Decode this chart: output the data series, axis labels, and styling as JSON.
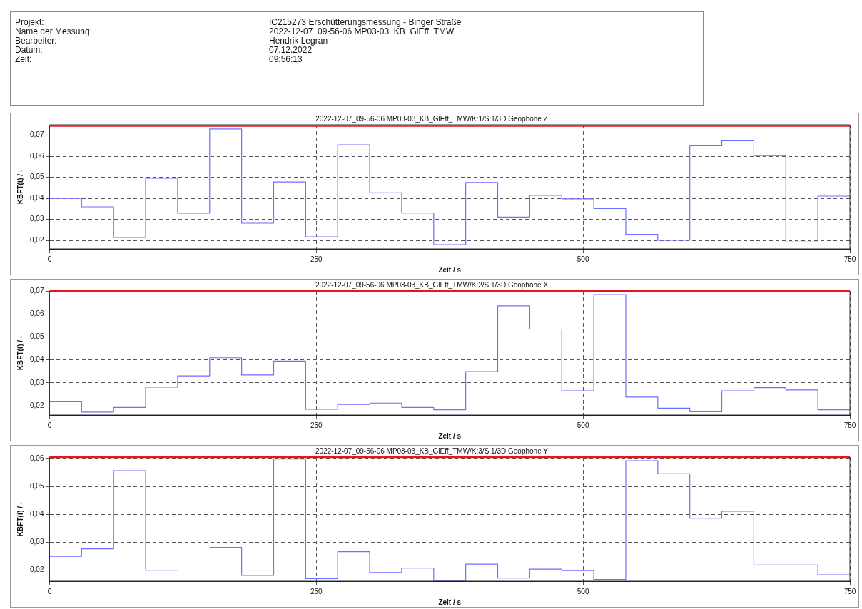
{
  "chart_data": [
    {
      "type": "other",
      "annotations": [
        "Projekt:",
        "IC215273 Erschütterungsmessung - Binger Straße",
        "Name der Messung:",
        "2022-12-07_09-56-06 MP03-03_KB_GlEff_TMW",
        "Bearbeiter:",
        "Hendrik Legran",
        "Datum:",
        "07.12.2022",
        "Zeit:",
        "09:56:13"
      ]
    },
    {
      "type": "step",
      "title": "2022-12-07_09-56-06 MP03-03_KB_GlEff_TMW/K:1/S:1/3D Geophone Z",
      "xlabel": "Zeit / s",
      "ylabel": "KBFT(t) / -",
      "grid": true,
      "line_style": "solid",
      "series": [
        {
          "color": "#6e6eff",
          "x": [
            0,
            30,
            60,
            90,
            120,
            150,
            180,
            210,
            240,
            270,
            300,
            330,
            360,
            390,
            420,
            450,
            480,
            510,
            540,
            570,
            600,
            630,
            660,
            690,
            720,
            750
          ],
          "values": [
            0.04,
            0.036,
            0.0215,
            0.0496,
            0.033,
            0.073,
            0.0282,
            0.0478,
            0.0217,
            0.0655,
            0.0427,
            0.0331,
            0.018,
            0.0476,
            0.0311,
            0.0415,
            0.0398,
            0.0352,
            0.0229,
            0.0201,
            0.065,
            0.0674,
            0.0604,
            0.0193,
            0.0411,
            0.0411
          ]
        }
      ],
      "xlim": [
        0,
        750
      ],
      "xticks": [
        0,
        250,
        500,
        750
      ],
      "ylim": [
        0.016,
        0.075
      ],
      "yticks": [
        {
          "value": 0.02,
          "label": "0,02"
        },
        {
          "value": 0.03,
          "label": "0,03"
        },
        {
          "value": 0.04,
          "label": "0,04"
        },
        {
          "value": 0.05,
          "label": "0,05"
        },
        {
          "value": 0.06,
          "label": "0,06"
        },
        {
          "value": 0.07,
          "label": "0,07"
        }
      ],
      "ref_lines": [
        {
          "axis": "y",
          "value": 0.0745,
          "color": "#e8141c"
        }
      ]
    },
    {
      "type": "step",
      "title": "2022-12-07_09-56-06 MP03-03_KB_GlEff_TMW/K:2/S:1/3D Geophone X",
      "xlabel": "Zeit / s",
      "ylabel": "KBFT(t) / -",
      "grid": true,
      "line_style": "solid",
      "series": [
        {
          "color": "#6e6eff",
          "x": [
            0,
            30,
            60,
            90,
            120,
            150,
            180,
            210,
            240,
            270,
            300,
            330,
            360,
            390,
            420,
            450,
            480,
            510,
            540,
            570,
            600,
            630,
            660,
            690,
            720,
            750
          ],
          "values": [
            0.0218,
            0.0173,
            0.0193,
            0.0281,
            0.033,
            0.0409,
            0.0334,
            0.0395,
            0.0185,
            0.0206,
            0.0212,
            0.0193,
            0.0183,
            0.0349,
            0.0635,
            0.0534,
            0.0265,
            0.0684,
            0.0238,
            0.019,
            0.0174,
            0.0265,
            0.0279,
            0.0269,
            0.0183,
            0.0183
          ]
        }
      ],
      "xlim": [
        0,
        750
      ],
      "xticks": [
        0,
        250,
        500,
        750
      ],
      "ylim": [
        0.016,
        0.07
      ],
      "yticks": [
        {
          "value": 0.02,
          "label": "0,02"
        },
        {
          "value": 0.03,
          "label": "0,03"
        },
        {
          "value": 0.04,
          "label": "0,04"
        },
        {
          "value": 0.05,
          "label": "0,05"
        },
        {
          "value": 0.06,
          "label": "0,06"
        },
        {
          "value": 0.07,
          "label": "0,07"
        }
      ],
      "ref_lines": [
        {
          "axis": "y",
          "value": 0.07,
          "color": "#e8141c"
        }
      ]
    },
    {
      "type": "step",
      "title": "2022-12-07_09-56-06 MP03-03_KB_GlEff_TMW/K:3/S:1/3D Geophone Y",
      "xlabel": "Zeit / s",
      "ylabel": "KBFT(t) / -",
      "grid": true,
      "line_style": "solid",
      "series": [
        {
          "color": "#6e6eff",
          "x": [
            0,
            30,
            60,
            90,
            120,
            150,
            180,
            210,
            240,
            270,
            300,
            330,
            360,
            390,
            420,
            450,
            480,
            510,
            540,
            570,
            600,
            630,
            660,
            690,
            720,
            750
          ],
          "values": [
            0.0249,
            0.0276,
            0.0556,
            0.0199,
            null,
            0.0281,
            0.0181,
            0.0598,
            0.0169,
            0.0266,
            0.0191,
            0.0207,
            0.0162,
            0.0221,
            0.0171,
            0.0203,
            0.0198,
            0.0166,
            0.0592,
            0.0545,
            0.0386,
            0.0411,
            0.0218,
            0.0218,
            0.0183,
            0.0183
          ]
        }
      ],
      "xlim": [
        0,
        750
      ],
      "xticks": [
        0,
        250,
        500,
        750
      ],
      "ylim": [
        0.016,
        0.0605
      ],
      "yticks": [
        {
          "value": 0.02,
          "label": "0,02"
        },
        {
          "value": 0.03,
          "label": "0,03"
        },
        {
          "value": 0.04,
          "label": "0,04"
        },
        {
          "value": 0.05,
          "label": "0,05"
        },
        {
          "value": 0.06,
          "label": "0,06"
        }
      ],
      "ref_lines": [
        {
          "axis": "y",
          "value": 0.0605,
          "color": "#e8141c"
        }
      ]
    }
  ]
}
